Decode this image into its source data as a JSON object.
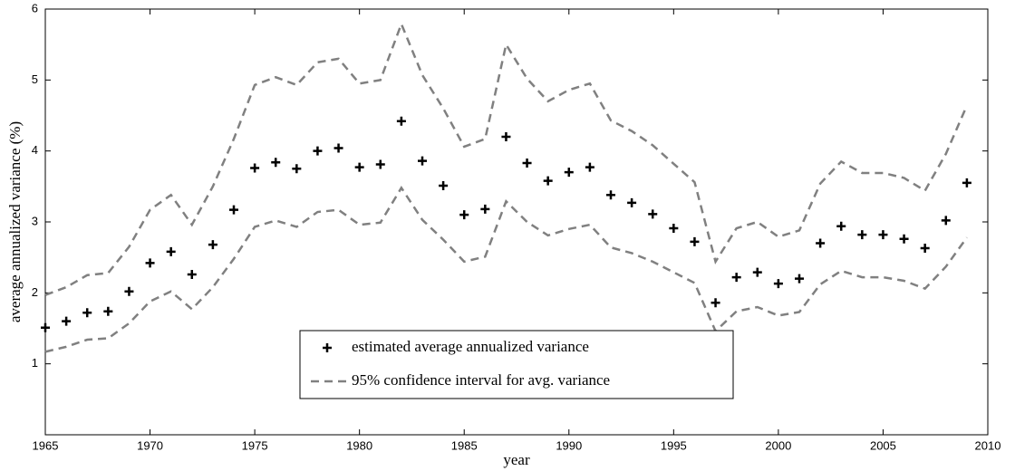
{
  "chart_data": {
    "type": "scatter",
    "x_label": "year",
    "y_label": "average annualized variance (%)",
    "x": [
      1965,
      1966,
      1967,
      1968,
      1969,
      1970,
      1971,
      1972,
      1973,
      1974,
      1975,
      1976,
      1977,
      1978,
      1979,
      1980,
      1981,
      1982,
      1983,
      1984,
      1985,
      1986,
      1987,
      1988,
      1989,
      1990,
      1991,
      1992,
      1993,
      1994,
      1995,
      1996,
      1997,
      1998,
      1999,
      2000,
      2001,
      2002,
      2003,
      2004,
      2005,
      2006,
      2007,
      2008,
      2009
    ],
    "series": [
      {
        "name": "estimated average annualized variance",
        "type": "scatter",
        "marker": "plus",
        "color": "#000000",
        "values": [
          1.51,
          1.6,
          1.72,
          1.74,
          2.02,
          2.42,
          2.58,
          2.26,
          2.68,
          3.17,
          3.76,
          3.84,
          3.75,
          4.0,
          4.04,
          3.77,
          3.81,
          4.42,
          3.86,
          3.51,
          3.1,
          3.18,
          4.2,
          3.83,
          3.58,
          3.7,
          3.77,
          3.38,
          3.27,
          3.11,
          2.91,
          2.72,
          1.86,
          2.22,
          2.29,
          2.13,
          2.2,
          2.7,
          2.94,
          2.82,
          2.82,
          2.76,
          2.63,
          3.02,
          3.55
        ]
      },
      {
        "name": "95% confidence interval for avg. variance",
        "type": "interval",
        "dashed": true,
        "color": "#808080",
        "upper": [
          1.97,
          2.08,
          2.25,
          2.28,
          2.65,
          3.17,
          3.38,
          2.96,
          3.5,
          4.17,
          4.93,
          5.04,
          4.93,
          5.25,
          5.3,
          4.95,
          5.0,
          5.79,
          5.07,
          4.6,
          4.06,
          4.17,
          5.5,
          5.02,
          4.7,
          4.86,
          4.95,
          4.43,
          4.28,
          4.08,
          3.82,
          3.56,
          2.44,
          2.91,
          3.0,
          2.79,
          2.88,
          3.54,
          3.85,
          3.69,
          3.69,
          3.62,
          3.44,
          3.96,
          4.64
        ],
        "lower": [
          1.17,
          1.24,
          1.34,
          1.36,
          1.57,
          1.88,
          2.02,
          1.77,
          2.08,
          2.48,
          2.93,
          3.02,
          2.93,
          3.14,
          3.17,
          2.96,
          2.99,
          3.48,
          3.03,
          2.75,
          2.44,
          2.51,
          3.29,
          3.0,
          2.81,
          2.9,
          2.96,
          2.64,
          2.56,
          2.44,
          2.29,
          2.14,
          1.46,
          1.74,
          1.8,
          1.68,
          1.73,
          2.12,
          2.31,
          2.22,
          2.22,
          2.17,
          2.06,
          2.37,
          2.78
        ]
      }
    ],
    "xlim": [
      1965,
      2010
    ],
    "xticks": [
      1965,
      1970,
      1975,
      1980,
      1985,
      1990,
      1995,
      2000,
      2005,
      2010
    ],
    "ylim": [
      0,
      6
    ],
    "yticks": [
      1,
      2,
      3,
      4,
      5,
      6
    ],
    "grid": false,
    "legend_loc": "lower center"
  }
}
